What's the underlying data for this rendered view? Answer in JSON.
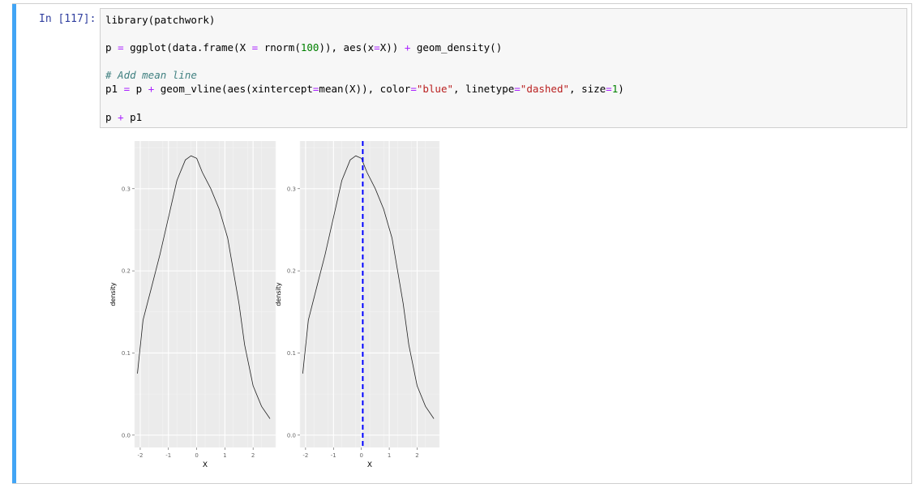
{
  "cell": {
    "prompt": "In [117]:",
    "code": {
      "line1": "library(patchwork)",
      "line2": {
        "a": "p ",
        "op1": "=",
        "b": " ggplot(data.frame(X ",
        "op2": "=",
        "c": " rnorm(",
        "num": "100",
        "d": ")), aes(x",
        "op3": "=",
        "e": "X)) ",
        "op4": "+",
        "f": " geom_density()"
      },
      "comment": "# Add mean line",
      "line4": {
        "a": "p1 ",
        "op1": "=",
        "b": " p ",
        "op2": "+",
        "c": " geom_vline(aes(xintercept",
        "op3": "=",
        "d": "mean(X)), color",
        "op4": "=",
        "s1": "\"blue\"",
        "e": ", linetype",
        "op5": "=",
        "s2": "\"dashed\"",
        "f": ", size",
        "op6": "=",
        "num": "1",
        "g": ")"
      },
      "line5": {
        "a": "p ",
        "op": "+",
        "b": " p1"
      }
    }
  },
  "chart_data": [
    {
      "type": "line",
      "xlabel": "X",
      "ylabel": "density",
      "x_ticks": [
        "-2",
        "-1",
        "0",
        "1",
        "2"
      ],
      "y_ticks": [
        "0.0",
        "0.1",
        "0.2",
        "0.3"
      ],
      "xlim": [
        -2.2,
        2.8
      ],
      "ylim": [
        -0.015,
        0.358
      ],
      "grid": true,
      "series": [
        {
          "x": [
            -2.1,
            -1.9,
            -1.6,
            -1.3,
            -1.0,
            -0.7,
            -0.4,
            -0.2,
            0.0,
            0.2,
            0.5,
            0.8,
            1.1,
            1.3,
            1.5,
            1.7,
            2.0,
            2.3,
            2.6
          ],
          "y": [
            0.075,
            0.14,
            0.18,
            0.22,
            0.265,
            0.31,
            0.335,
            0.34,
            0.337,
            0.32,
            0.3,
            0.275,
            0.24,
            0.2,
            0.16,
            0.11,
            0.06,
            0.035,
            0.02
          ]
        }
      ],
      "vline": null
    },
    {
      "type": "line",
      "xlabel": "X",
      "ylabel": "density",
      "x_ticks": [
        "-2",
        "-1",
        "0",
        "1",
        "2"
      ],
      "y_ticks": [
        "0.0",
        "0.1",
        "0.2",
        "0.3"
      ],
      "xlim": [
        -2.2,
        2.8
      ],
      "ylim": [
        -0.015,
        0.358
      ],
      "grid": true,
      "series": [
        {
          "x": [
            -2.1,
            -1.9,
            -1.6,
            -1.3,
            -1.0,
            -0.7,
            -0.4,
            -0.2,
            0.0,
            0.2,
            0.5,
            0.8,
            1.1,
            1.3,
            1.5,
            1.7,
            2.0,
            2.3,
            2.6
          ],
          "y": [
            0.075,
            0.14,
            0.18,
            0.22,
            0.265,
            0.31,
            0.335,
            0.34,
            0.337,
            0.32,
            0.3,
            0.275,
            0.24,
            0.2,
            0.16,
            0.11,
            0.06,
            0.035,
            0.02
          ]
        }
      ],
      "vline": {
        "x": 0.05,
        "color": "#0000ff",
        "linetype": "dashed"
      }
    }
  ]
}
